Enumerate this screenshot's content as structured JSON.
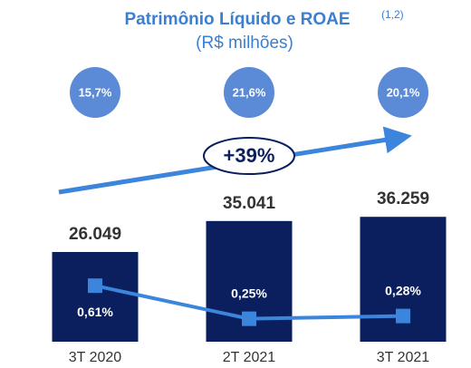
{
  "chart_data": {
    "type": "bar",
    "title": "Patrimônio Líquido e ROAE",
    "title_note": "(1,2)",
    "subtitle": "(R$ milhões)",
    "categories": [
      "3T 2020",
      "2T 2021",
      "3T 2021"
    ],
    "values": [
      26049,
      35041,
      36259
    ],
    "value_labels": [
      "26.049",
      "35.041",
      "36.259"
    ],
    "color": "#0b1f5e",
    "ylim": [
      0,
      40000
    ],
    "y2lim": [
      0,
      1.5
    ],
    "line": {
      "values": [
        0.61,
        0.25,
        0.28
      ],
      "value_labels": [
        "0,61%",
        "0,25%",
        "0,28%"
      ],
      "color": "#3b86dc",
      "axis": "y2"
    },
    "circles": {
      "values": [
        15.7,
        21.6,
        20.1
      ],
      "value_labels": [
        "15,7%",
        "21,6%",
        "20,1%"
      ],
      "color": "#5b8ad6"
    },
    "annotation": "+39%"
  }
}
